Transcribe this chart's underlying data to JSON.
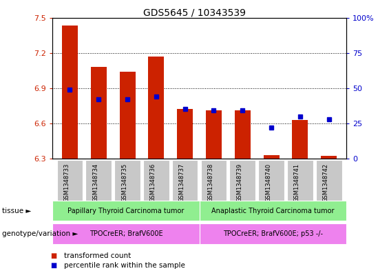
{
  "title": "GDS5645 / 10343539",
  "samples": [
    "GSM1348733",
    "GSM1348734",
    "GSM1348735",
    "GSM1348736",
    "GSM1348737",
    "GSM1348738",
    "GSM1348739",
    "GSM1348740",
    "GSM1348741",
    "GSM1348742"
  ],
  "transformed_count": [
    7.43,
    7.08,
    7.04,
    7.17,
    6.72,
    6.71,
    6.71,
    6.33,
    6.63,
    6.32
  ],
  "percentile_rank": [
    49,
    42,
    42,
    44,
    35,
    34,
    34,
    22,
    30,
    28
  ],
  "ylim_left": [
    6.3,
    7.5
  ],
  "ylim_right": [
    0,
    100
  ],
  "yticks_left": [
    6.3,
    6.6,
    6.9,
    7.2,
    7.5
  ],
  "yticks_right": [
    0,
    25,
    50,
    75,
    100
  ],
  "bar_color": "#cc2200",
  "dot_color": "#0000cc",
  "bar_bottom": 6.3,
  "tissue_groups": [
    {
      "label": "Papillary Thyroid Carcinoma tumor",
      "start": 0,
      "end": 5,
      "color": "#90ee90"
    },
    {
      "label": "Anaplastic Thyroid Carcinoma tumor",
      "start": 5,
      "end": 10,
      "color": "#90ee90"
    }
  ],
  "genotype_groups": [
    {
      "label": "TPOCreER; BrafV600E",
      "start": 0,
      "end": 5,
      "color": "#ee82ee"
    },
    {
      "label": "TPOCreER; BrafV600E; p53 -/-",
      "start": 5,
      "end": 10,
      "color": "#ee82ee"
    }
  ],
  "tissue_label": "tissue",
  "genotype_label": "genotype/variation",
  "legend_items": [
    {
      "color": "#cc2200",
      "label": "transformed count"
    },
    {
      "color": "#0000cc",
      "label": "percentile rank within the sample"
    }
  ],
  "grid_color": "#000000",
  "bg_color": "#ffffff",
  "tick_bg_color": "#c8c8c8",
  "title_fontsize": 10,
  "tick_fontsize": 8,
  "label_fontsize": 7.5,
  "ytick_right_labels": [
    "0",
    "25",
    "50",
    "75",
    "100%"
  ]
}
